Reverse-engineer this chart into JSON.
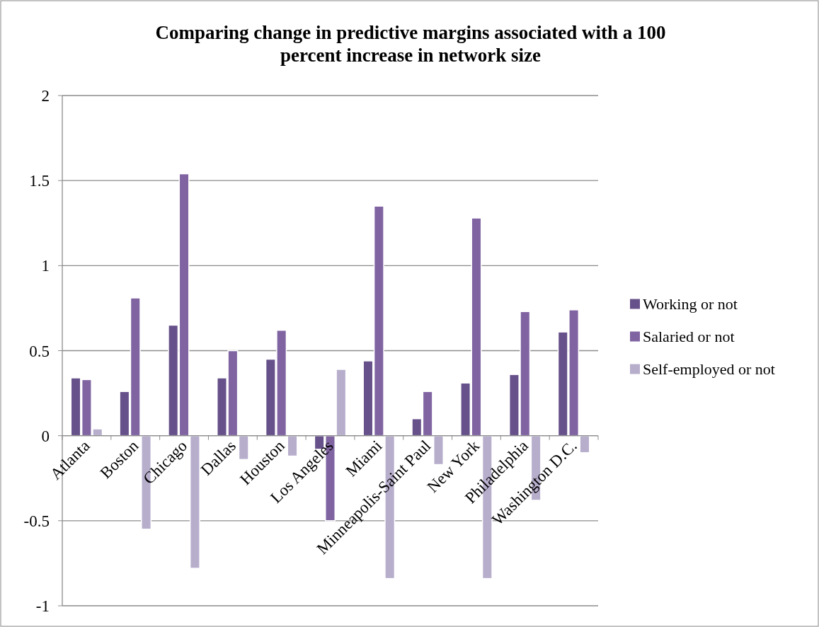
{
  "chart_data": {
    "type": "bar",
    "title": "Comparing change in predictive margins associated with a 100 percent increase in network size",
    "categories": [
      "Atlanta",
      "Boston",
      "Chicago",
      "Dallas",
      "Houston",
      "Los Angeles",
      "Miami",
      "Minneapolis-Saint Paul",
      "New York",
      "Philadelphia",
      "Washington D.C."
    ],
    "series": [
      {
        "name": "Working or not",
        "color": "#67518a",
        "values": [
          0.34,
          0.26,
          0.65,
          0.34,
          0.45,
          -0.08,
          0.44,
          0.1,
          0.31,
          0.36,
          0.61
        ]
      },
      {
        "name": "Salaried or not",
        "color": "#8064a2",
        "values": [
          0.33,
          0.81,
          1.54,
          0.5,
          0.62,
          -0.5,
          1.35,
          0.26,
          1.28,
          0.73,
          0.74
        ]
      },
      {
        "name": "Self-employed or not",
        "color": "#b7aecc",
        "values": [
          0.04,
          -0.55,
          -0.78,
          -0.14,
          -0.12,
          0.39,
          -0.84,
          -0.17,
          -0.84,
          -0.38,
          -0.1
        ]
      }
    ],
    "ylim": [
      -1,
      2
    ],
    "yticks": [
      -1,
      -0.5,
      0,
      0.5,
      1,
      1.5,
      2
    ],
    "grid": "y",
    "legend": "right"
  }
}
